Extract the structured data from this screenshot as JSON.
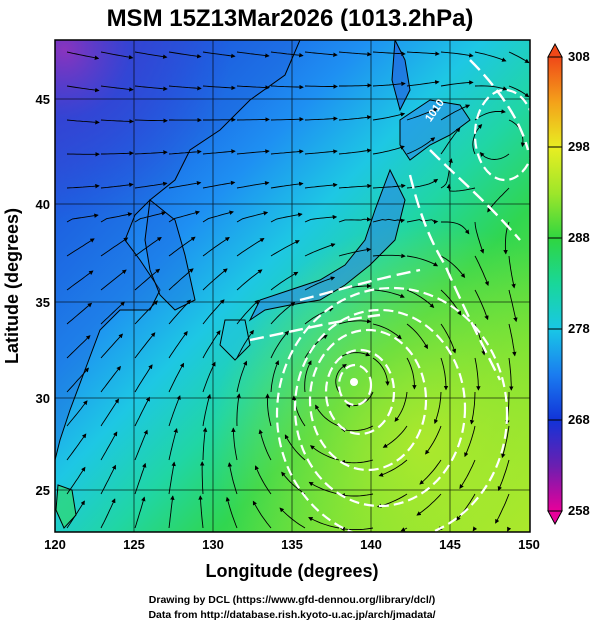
{
  "title": "MSM 15Z13Mar2026 (1013.2hPa)",
  "x_axis_label": "Longitude (degrees)",
  "y_axis_label": "Latitude  (degrees)",
  "x_ticks": [
    "120",
    "125",
    "130",
    "135",
    "140",
    "145",
    "150"
  ],
  "y_ticks": [
    "45",
    "40",
    "35",
    "30",
    "25"
  ],
  "colorbar_ticks": [
    "308",
    "298",
    "288",
    "278",
    "268",
    "258"
  ],
  "contour_label": "1010",
  "credits": {
    "line1": "Drawing by DCL (https://www.gfd-dennou.org/library/dcl/)",
    "line2": "Data from http://database.rish.kyoto-u.ac.jp/arch/jmadata/"
  },
  "map": {
    "lon_range": [
      120,
      150
    ],
    "lat_range": [
      22.5,
      47.5
    ],
    "colorbar_range": [
      258,
      308
    ],
    "colorbar_colors": [
      "#e8009a",
      "#6a1fb0",
      "#1233d8",
      "#1a7cf0",
      "#19c7e6",
      "#19d79a",
      "#2fd640",
      "#9ee62a",
      "#e8ee22",
      "#f4a21a",
      "#f04818"
    ],
    "land_color": "#ffffff",
    "coast_color": "#000000"
  }
}
